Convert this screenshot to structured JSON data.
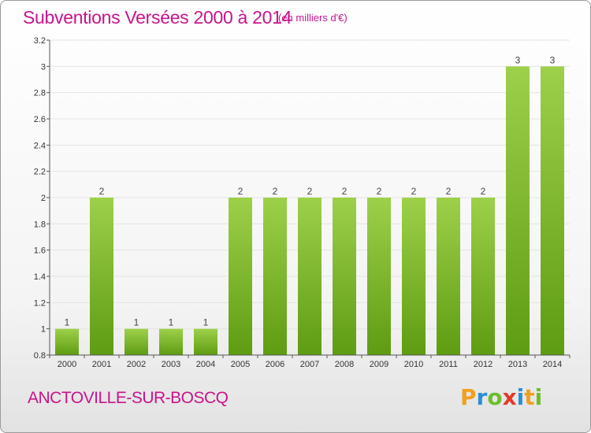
{
  "header": {
    "title": "Subventions Versées 2000 à 2014",
    "unit": "(en milliers d'€)"
  },
  "commune": "ANCTOVILLE-SUR-BOSCQ",
  "logo": {
    "letters": [
      "P",
      "r",
      "o",
      "x",
      "i",
      "t",
      "i"
    ],
    "colors": [
      "#f0a020",
      "#2a8fd6",
      "#6dbe2c",
      "#e23a2a",
      "#2a8fd6",
      "#f0a020",
      "#6dbe2c"
    ]
  },
  "colors": {
    "accent": "#c7148c",
    "bar_top": "#9ed04a",
    "bar_bottom": "#5e9c12",
    "grid": "#e4e4e4",
    "axis": "#555555"
  },
  "chart_data": {
    "type": "bar",
    "title": "Subventions Versées 2000 à 2014",
    "subtitle": "(en milliers d'€)",
    "categories": [
      "2000",
      "2001",
      "2002",
      "2003",
      "2004",
      "2005",
      "2006",
      "2007",
      "2008",
      "2009",
      "2010",
      "2011",
      "2012",
      "2013",
      "2014"
    ],
    "values": [
      1,
      2,
      1,
      1,
      1,
      2,
      2,
      2,
      2,
      2,
      2,
      2,
      2,
      3,
      3
    ],
    "labels": [
      "1",
      "2",
      "1",
      "1",
      "1",
      "2",
      "2",
      "2",
      "2",
      "2",
      "2",
      "2",
      "2",
      "3",
      "3"
    ],
    "ylim": [
      0.8,
      3.2
    ],
    "yticks": [
      "0.8",
      "1",
      "1.2",
      "1.4",
      "1.6",
      "1.8",
      "2",
      "2.2",
      "2.4",
      "2.6",
      "2.8",
      "3",
      "3.2"
    ],
    "ytick_values": [
      0.8,
      1,
      1.2,
      1.4,
      1.6,
      1.8,
      2,
      2.2,
      2.4,
      2.6,
      2.8,
      3,
      3.2
    ],
    "grid": true,
    "xlabel": "",
    "ylabel": ""
  }
}
